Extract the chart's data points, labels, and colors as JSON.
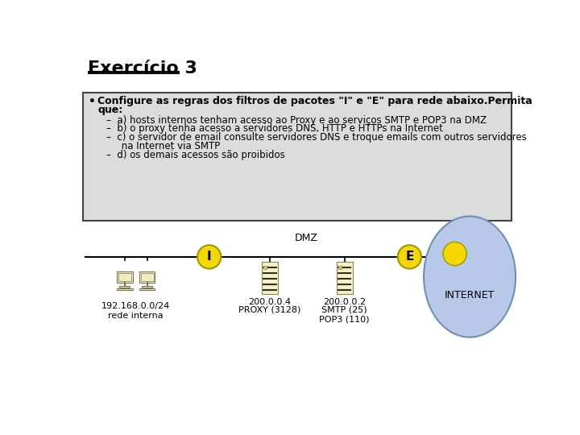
{
  "title": "Exercício 3",
  "bg_color": "#ffffff",
  "box_bg": "#dcdcdc",
  "box_border": "#444444",
  "bold_line1": "Configure as regras dos filtros de pacotes \"I\" e \"E\" para rede abaixo.Permita",
  "bold_line2": "que:",
  "sub_items": [
    "–  a) hosts internos tenham acesso ao Proxy e ao serviços SMTP e POP3 na DMZ",
    "–  b) o proxy tenha acesso a servidores DNS, HTTP e HTTPs na Internet",
    "–  c) o servidor de email consulte servidores DNS e troque emails com outros servidores",
    "     na Internet via SMTP",
    "–  d) os demais acessos são proibidos"
  ],
  "dmz_label": "DMZ",
  "filter_I_label": "I",
  "filter_E_label": "E",
  "internet_label": "INTERNET",
  "net1_label": "192.168.0.0/24\nrede interna",
  "proxy_addr": "200.0.0.4",
  "proxy_service": "PROXY (3128)",
  "smtp_addr": "200.0.0.2",
  "smtp_service": "SMTP (25)\nPOP3 (110)",
  "filter_color": "#f5d800",
  "filter_border": "#999900",
  "internet_fill": "#b8c8e8",
  "internet_border": "#7090b0",
  "line_color": "#000000",
  "text_color": "#000000",
  "server_color": "#f5f0c8",
  "server_border": "#888855",
  "comp_color": "#f5f0c8",
  "comp_border": "#777755"
}
